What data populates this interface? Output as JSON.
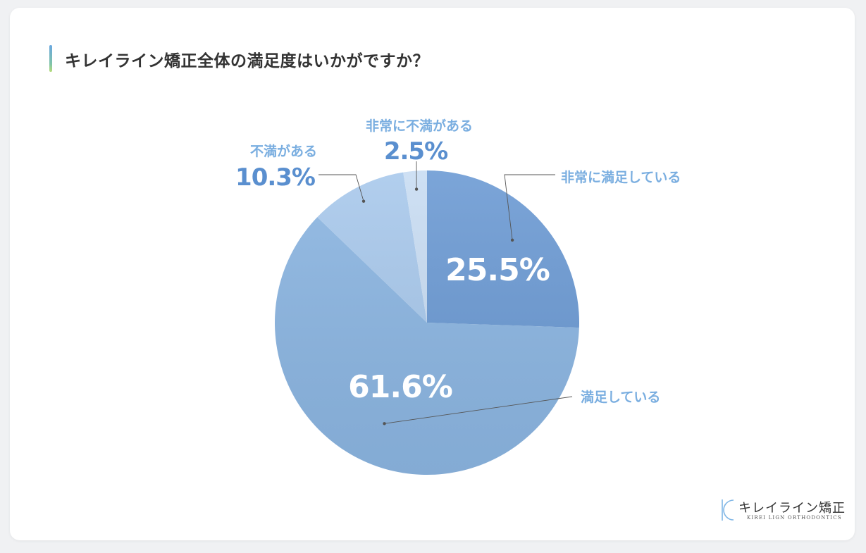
{
  "title": "キレイライン矯正全体の満足度はいかがですか？",
  "chart_data": {
    "type": "pie",
    "title": "キレイライン矯正全体の満足度はいかがですか？",
    "start_angle_deg": 0,
    "direction": "clockwise",
    "slices": [
      {
        "label": "非常に満足している",
        "value": 25.5,
        "value_label": "25.5%",
        "color": "#6d9bd4"
      },
      {
        "label": "満足している",
        "value": 61.6,
        "value_label": "61.6%",
        "color": "#8cb6e2"
      },
      {
        "label": "不満がある",
        "value": 10.3,
        "value_label": "10.3%",
        "color": "#a9c9ec"
      },
      {
        "label": "非常に不満がある",
        "value": 2.5,
        "value_label": "2.5%",
        "color": "#c9ddf3"
      }
    ],
    "label_color": "#7aaee0",
    "value_color": "#5a8fcf"
  },
  "logo": {
    "name": "キレイライン矯正",
    "sub": "KIREI LIGN ORTHODONTICS"
  }
}
